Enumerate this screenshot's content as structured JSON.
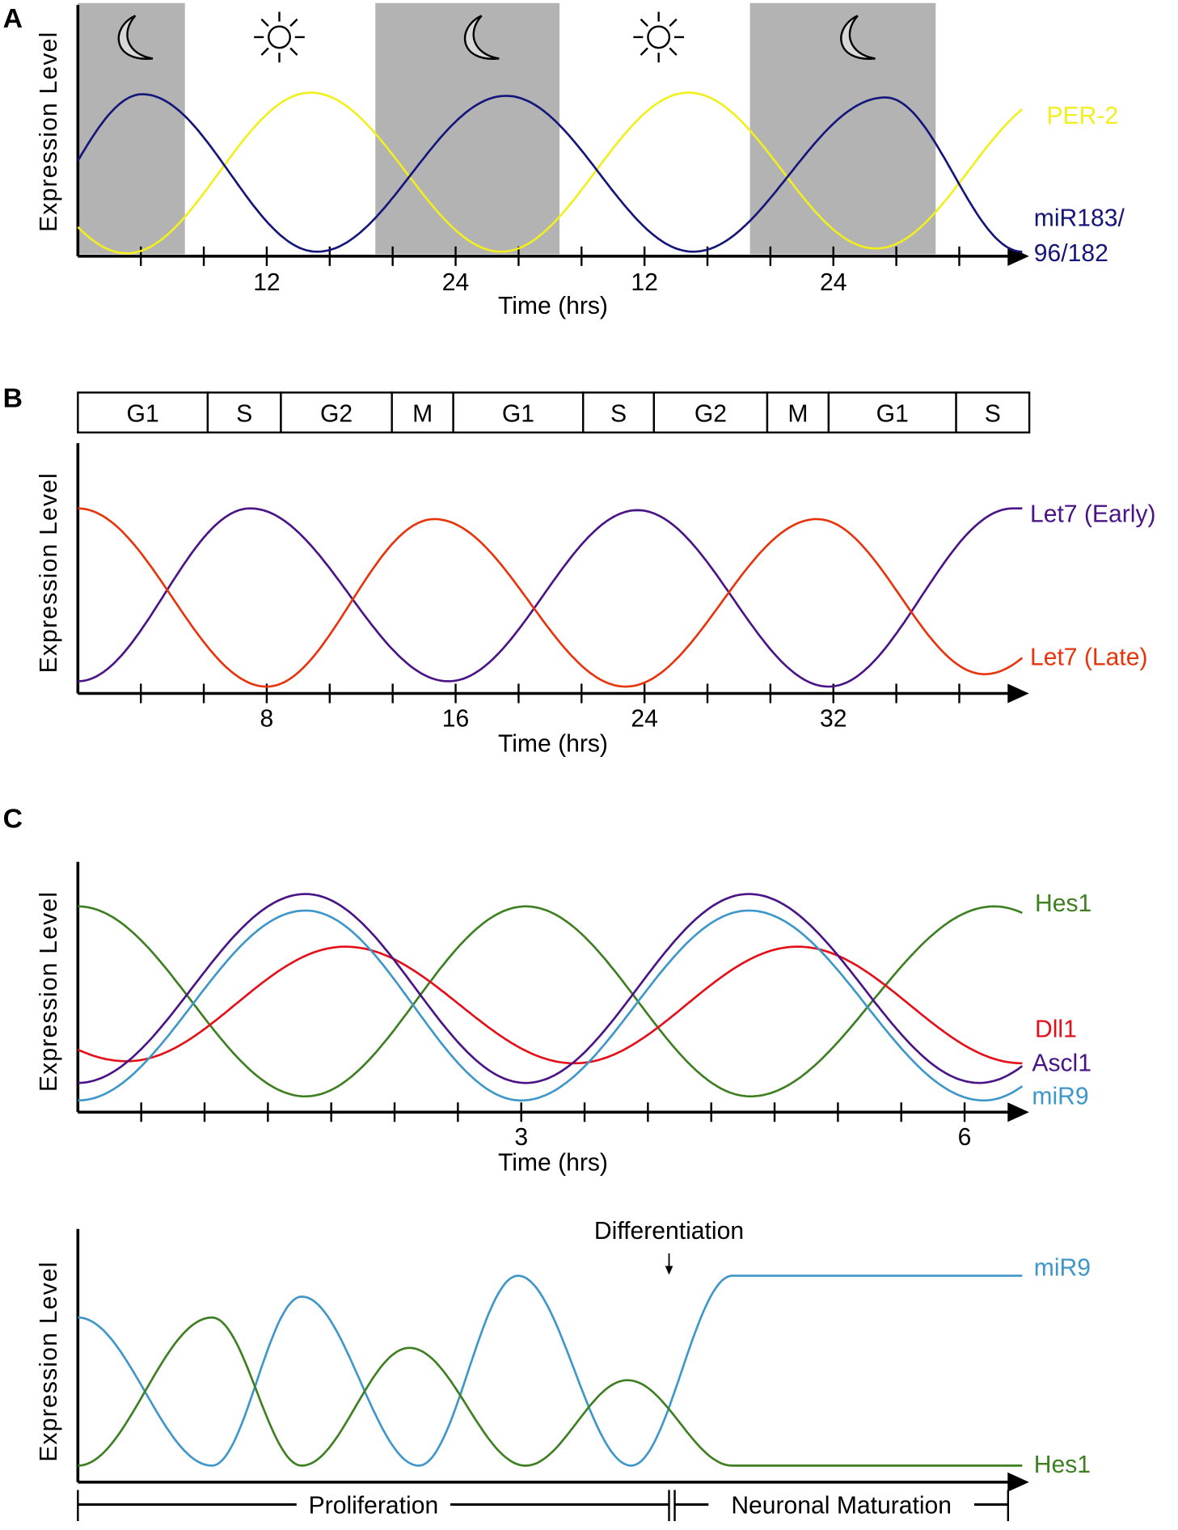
{
  "chart_data": [
    {
      "id": "A",
      "type": "line",
      "panel_label": "A",
      "ylabel": "Expression Level",
      "xlabel": "Time (hrs)",
      "xlim": [
        0,
        60
      ],
      "ylim": [
        0,
        1
      ],
      "tick_step": 4,
      "tick_labels": [
        {
          "t": 12,
          "label": "12"
        },
        {
          "t": 24,
          "label": "24"
        },
        {
          "t": 36,
          "label": "12"
        },
        {
          "t": 48,
          "label": "24"
        }
      ],
      "night_periods": [
        [
          0,
          6.8
        ],
        [
          18.9,
          30.6
        ],
        [
          42.7,
          54.5
        ]
      ],
      "night_icon": "moon-icon",
      "day_icon": "sun-icon",
      "day_icon_times": [
        12.8,
        36.9
      ],
      "night_icon_times": [
        3.4,
        25.4,
        49.3
      ],
      "colors": {
        "night": "#b3b3b3"
      },
      "series": [
        {
          "name": "PER-2",
          "color": "#f2ef1e",
          "extrema": [
            [
              -8.6,
              1
            ],
            [
              3.1,
              0
            ],
            [
              14.8,
              1
            ],
            [
              26.9,
              0.01
            ],
            [
              38.8,
              1
            ],
            [
              50.7,
              0.03
            ],
            [
              62.5,
              1
            ]
          ]
        },
        {
          "name": "miR183/96/182",
          "label_lines": [
            "miR183/",
            "96/182"
          ],
          "color": "#14167a",
          "extrema": [
            [
              -5,
              0.01
            ],
            [
              4.1,
              0.99
            ],
            [
              15.2,
              0.01
            ],
            [
              27.2,
              0.98
            ],
            [
              39.1,
              0.01
            ],
            [
              51.3,
              0.97
            ],
            [
              60,
              0.01
            ]
          ]
        }
      ]
    },
    {
      "id": "B",
      "type": "line",
      "panel_label": "B",
      "ylabel": "Expression Level",
      "xlabel": "Time (hrs)",
      "xlim": [
        0,
        40
      ],
      "ylim": [
        0,
        1
      ],
      "tick_step": 2.6667,
      "tick_labels": [
        {
          "t": 8,
          "label": "8"
        },
        {
          "t": 16,
          "label": "16"
        },
        {
          "t": 24,
          "label": "24"
        },
        {
          "t": 32,
          "label": "32"
        }
      ],
      "cell_cycle": [
        {
          "phase": "G1",
          "start": 0,
          "end": 5.5
        },
        {
          "phase": "S",
          "start": 5.5,
          "end": 8.6
        },
        {
          "phase": "G2",
          "start": 8.6,
          "end": 13.3
        },
        {
          "phase": "M",
          "start": 13.3,
          "end": 15.9
        },
        {
          "phase": "G1",
          "start": 15.9,
          "end": 21.4
        },
        {
          "phase": "S",
          "start": 21.4,
          "end": 24.4
        },
        {
          "phase": "G2",
          "start": 24.4,
          "end": 29.2
        },
        {
          "phase": "M",
          "start": 29.2,
          "end": 31.8
        },
        {
          "phase": "G1",
          "start": 31.8,
          "end": 37.2
        },
        {
          "phase": "S",
          "start": 37.2,
          "end": 40.3
        }
      ],
      "series": [
        {
          "name": "Let7 (Early)",
          "color": "#4a1486",
          "extrema": [
            [
              0,
              0.03
            ],
            [
              7.3,
              1
            ],
            [
              15.7,
              0.03
            ],
            [
              23.7,
              0.99
            ],
            [
              31.8,
              0
            ],
            [
              39.6,
              1
            ],
            [
              40,
              1
            ]
          ]
        },
        {
          "name": "Let7 (Late)",
          "color": "#e8340c",
          "extrema": [
            [
              0,
              1
            ],
            [
              8,
              0
            ],
            [
              15.1,
              0.94
            ],
            [
              23.2,
              0
            ],
            [
              31.3,
              0.94
            ],
            [
              38.4,
              0.07
            ],
            [
              46,
              0.94
            ]
          ]
        }
      ]
    },
    {
      "id": "C1",
      "type": "line",
      "panel_label": "C",
      "ylabel": "Expression Level",
      "xlabel": "Time (hrs)",
      "xlim": [
        0,
        6.39
      ],
      "ylim": [
        0,
        1
      ],
      "tick_step": 0.42857,
      "tick_labels": [
        {
          "t": 3,
          "label": "3"
        },
        {
          "t": 6,
          "label": "6"
        }
      ],
      "series": [
        {
          "name": "Hes1",
          "color": "#3e7f22",
          "extrema": [
            [
              0,
              0.94
            ],
            [
              1.54,
              0.02
            ],
            [
              3.03,
              0.94
            ],
            [
              4.55,
              0.02
            ],
            [
              6.2,
              0.94
            ],
            [
              7.8,
              0.02
            ]
          ]
        },
        {
          "name": "Dll1",
          "color": "#e3101a",
          "extrema": [
            [
              -1.2,
              0.7
            ],
            [
              0.33,
              0.19
            ],
            [
              1.81,
              0.745
            ],
            [
              3.36,
              0.18
            ],
            [
              4.87,
              0.745
            ],
            [
              6.39,
              0.18
            ]
          ]
        },
        {
          "name": "Ascl1",
          "color": "#4a1486",
          "extrema": [
            [
              0,
              0.085
            ],
            [
              1.54,
              1
            ],
            [
              3.03,
              0.085
            ],
            [
              4.54,
              1
            ],
            [
              6.1,
              0.085
            ],
            [
              7.6,
              1
            ]
          ]
        },
        {
          "name": "miR9",
          "color": "#3e97c8",
          "extrema": [
            [
              0,
              0
            ],
            [
              1.54,
              0.92
            ],
            [
              3.0,
              0
            ],
            [
              4.54,
              0.92
            ],
            [
              6.13,
              0
            ],
            [
              7.6,
              0.92
            ]
          ]
        }
      ]
    },
    {
      "id": "C2",
      "type": "line",
      "ylabel": "Expression Level",
      "xlim": [
        0,
        100
      ],
      "ylim": [
        0,
        1
      ],
      "annotation": {
        "text": "Differentiation",
        "t": 62.6
      },
      "phases": [
        {
          "name": "Proliferation",
          "start": 0,
          "end": 62.6
        },
        {
          "name": "Neuronal Maturation",
          "start": 63.2,
          "end": 98.5
        }
      ],
      "series": [
        {
          "name": "miR9",
          "color": "#3e97c8",
          "extrema": [
            [
              0,
              0.78
            ],
            [
              14.2,
              0
            ],
            [
              23.7,
              0.89
            ],
            [
              36.1,
              0
            ],
            [
              46.6,
              1
            ],
            [
              58.6,
              0
            ],
            [
              69.3,
              1
            ],
            [
              100,
              1
            ]
          ]
        },
        {
          "name": "Hes1",
          "color": "#3e7f22",
          "extrema": [
            [
              0,
              0
            ],
            [
              14.2,
              0.78
            ],
            [
              23.7,
              0
            ],
            [
              35.1,
              0.62
            ],
            [
              47.4,
              0
            ],
            [
              58.2,
              0.45
            ],
            [
              69.3,
              0
            ],
            [
              100,
              0
            ]
          ]
        }
      ]
    }
  ]
}
